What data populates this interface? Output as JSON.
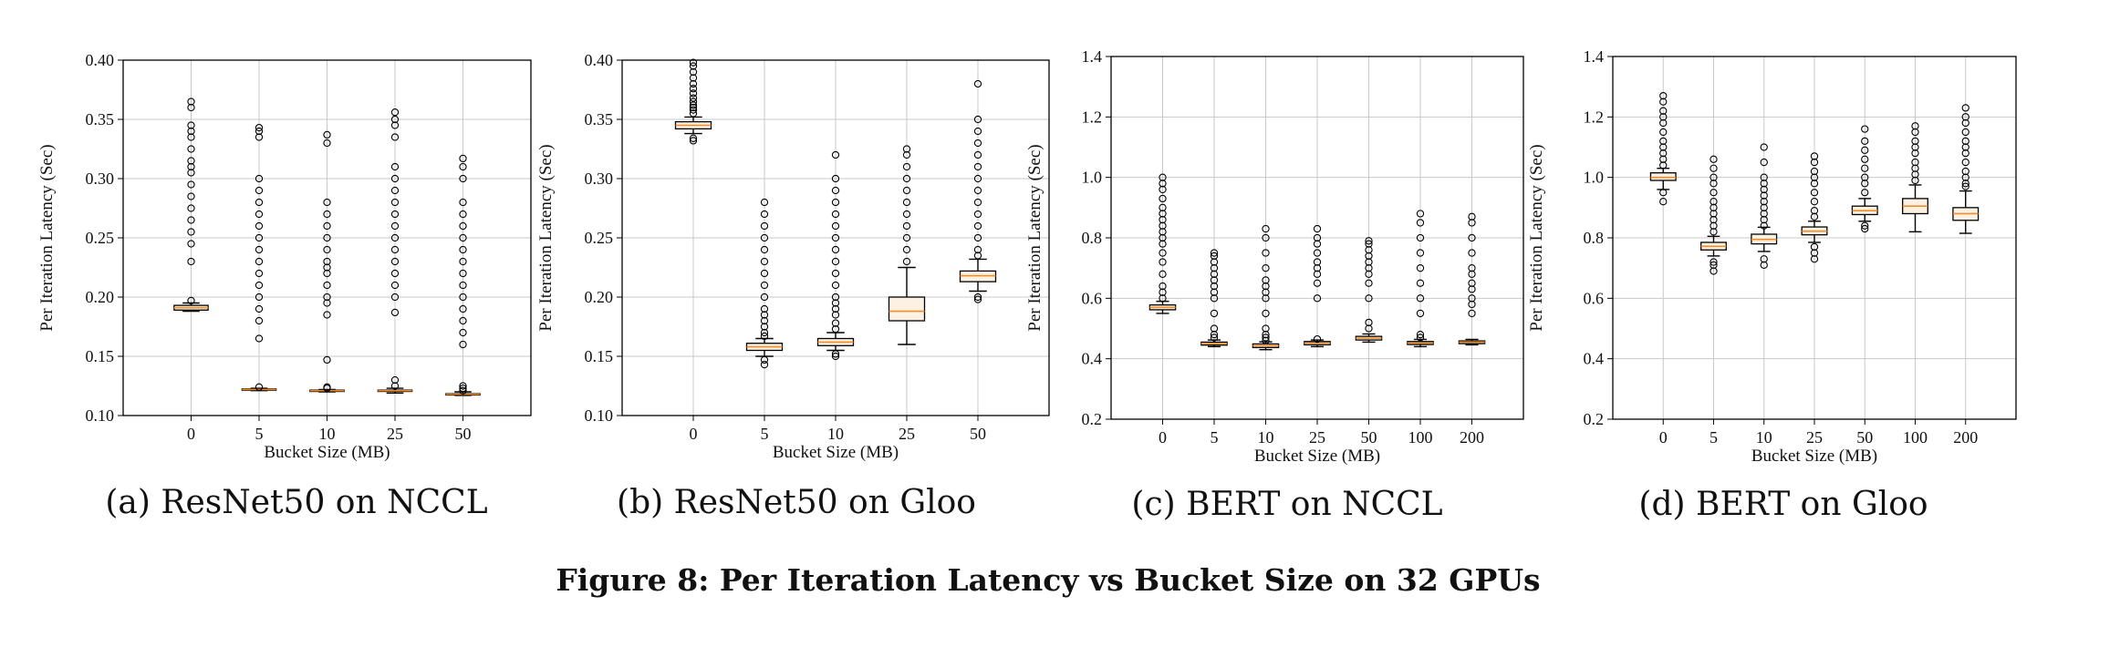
{
  "figure_caption": "Figure 8: Per Iteration Latency vs Bucket Size on 32 GPUs",
  "colors": {
    "box_fill": "#fdf1e3",
    "median": "#f28c28",
    "grid": "#c8c8c8",
    "frame": "#000000"
  },
  "chart_data": [
    {
      "type": "box",
      "caption": "(a) ResNet50 on NCCL",
      "xlabel": "Bucket Size (MB)",
      "ylabel": "Per Iteration Latency (Sec)",
      "ylim": [
        0.1,
        0.4
      ],
      "yticks": [
        "0.10",
        "0.15",
        "0.20",
        "0.25",
        "0.30",
        "0.35",
        "0.40"
      ],
      "grid": true,
      "categories": [
        "0",
        "5",
        "10",
        "25",
        "50"
      ],
      "boxes": [
        {
          "whislo": 0.188,
          "q1": 0.189,
          "med": 0.191,
          "q3": 0.193,
          "whishi": 0.195,
          "fliers": [
            0.197,
            0.23,
            0.245,
            0.255,
            0.265,
            0.275,
            0.285,
            0.295,
            0.305,
            0.31,
            0.315,
            0.325,
            0.335,
            0.34,
            0.345,
            0.36,
            0.365
          ]
        },
        {
          "whislo": 0.121,
          "q1": 0.1215,
          "med": 0.122,
          "q3": 0.1225,
          "whishi": 0.123,
          "fliers": [
            0.124,
            0.165,
            0.18,
            0.19,
            0.2,
            0.21,
            0.22,
            0.23,
            0.24,
            0.25,
            0.26,
            0.27,
            0.28,
            0.29,
            0.3,
            0.335,
            0.34,
            0.343
          ]
        },
        {
          "whislo": 0.12,
          "q1": 0.1205,
          "med": 0.121,
          "q3": 0.1215,
          "whishi": 0.122,
          "fliers": [
            0.123,
            0.124,
            0.147,
            0.185,
            0.195,
            0.2,
            0.21,
            0.22,
            0.225,
            0.23,
            0.24,
            0.25,
            0.26,
            0.27,
            0.28,
            0.33,
            0.337
          ]
        },
        {
          "whislo": 0.119,
          "q1": 0.1205,
          "med": 0.121,
          "q3": 0.1215,
          "whishi": 0.123,
          "fliers": [
            0.125,
            0.13,
            0.187,
            0.2,
            0.21,
            0.22,
            0.23,
            0.24,
            0.25,
            0.26,
            0.27,
            0.28,
            0.29,
            0.3,
            0.31,
            0.335,
            0.345,
            0.35,
            0.356
          ]
        },
        {
          "whislo": 0.117,
          "q1": 0.1175,
          "med": 0.118,
          "q3": 0.1185,
          "whishi": 0.12,
          "fliers": [
            0.121,
            0.123,
            0.125,
            0.16,
            0.17,
            0.18,
            0.19,
            0.2,
            0.21,
            0.22,
            0.23,
            0.24,
            0.25,
            0.26,
            0.27,
            0.28,
            0.3,
            0.31,
            0.317
          ]
        }
      ]
    },
    {
      "type": "box",
      "caption": "(b) ResNet50 on Gloo",
      "xlabel": "Bucket Size (MB)",
      "ylabel": "Per Iteration Latency (Sec)",
      "ylim": [
        0.1,
        0.4
      ],
      "yticks": [
        "0.10",
        "0.15",
        "0.20",
        "0.25",
        "0.30",
        "0.35",
        "0.40"
      ],
      "grid": true,
      "categories": [
        "0",
        "5",
        "10",
        "25",
        "50"
      ],
      "boxes": [
        {
          "whislo": 0.338,
          "q1": 0.342,
          "med": 0.345,
          "q3": 0.348,
          "whishi": 0.352,
          "fliers": [
            0.332,
            0.334,
            0.355,
            0.358,
            0.36,
            0.362,
            0.365,
            0.368,
            0.372,
            0.376,
            0.38,
            0.385,
            0.39,
            0.395,
            0.398
          ]
        },
        {
          "whislo": 0.15,
          "q1": 0.155,
          "med": 0.158,
          "q3": 0.161,
          "whishi": 0.165,
          "fliers": [
            0.143,
            0.147,
            0.167,
            0.17,
            0.175,
            0.18,
            0.185,
            0.19,
            0.2,
            0.21,
            0.22,
            0.23,
            0.24,
            0.25,
            0.26,
            0.27,
            0.28
          ]
        },
        {
          "whislo": 0.155,
          "q1": 0.159,
          "med": 0.162,
          "q3": 0.165,
          "whishi": 0.17,
          "fliers": [
            0.15,
            0.152,
            0.173,
            0.178,
            0.185,
            0.19,
            0.195,
            0.2,
            0.21,
            0.22,
            0.23,
            0.24,
            0.25,
            0.26,
            0.27,
            0.28,
            0.29,
            0.3,
            0.32
          ]
        },
        {
          "whislo": 0.16,
          "q1": 0.18,
          "med": 0.188,
          "q3": 0.2,
          "whishi": 0.225,
          "fliers": [
            0.23,
            0.24,
            0.25,
            0.26,
            0.27,
            0.28,
            0.29,
            0.3,
            0.31,
            0.32,
            0.325
          ]
        },
        {
          "whislo": 0.205,
          "q1": 0.213,
          "med": 0.218,
          "q3": 0.222,
          "whishi": 0.232,
          "fliers": [
            0.198,
            0.2,
            0.235,
            0.24,
            0.25,
            0.26,
            0.27,
            0.28,
            0.29,
            0.3,
            0.31,
            0.32,
            0.33,
            0.34,
            0.35,
            0.38
          ]
        }
      ]
    },
    {
      "type": "box",
      "caption": "(c) BERT on NCCL",
      "xlabel": "Bucket Size (MB)",
      "ylabel": "Per Iteration Latency (Sec)",
      "ylim": [
        0.2,
        1.4
      ],
      "yticks": [
        "0.2",
        "0.4",
        "0.6",
        "0.8",
        "1.0",
        "1.2",
        "1.4"
      ],
      "grid": true,
      "categories": [
        "0",
        "5",
        "10",
        "25",
        "50",
        "100",
        "200"
      ],
      "boxes": [
        {
          "whislo": 0.55,
          "q1": 0.562,
          "med": 0.57,
          "q3": 0.578,
          "whishi": 0.59,
          "fliers": [
            0.6,
            0.62,
            0.64,
            0.68,
            0.72,
            0.75,
            0.78,
            0.8,
            0.82,
            0.84,
            0.86,
            0.88,
            0.9,
            0.93,
            0.96,
            0.98,
            1.0
          ]
        },
        {
          "whislo": 0.44,
          "q1": 0.445,
          "med": 0.45,
          "q3": 0.455,
          "whishi": 0.462,
          "fliers": [
            0.47,
            0.48,
            0.5,
            0.55,
            0.6,
            0.62,
            0.64,
            0.66,
            0.68,
            0.7,
            0.72,
            0.74,
            0.75
          ]
        },
        {
          "whislo": 0.43,
          "q1": 0.437,
          "med": 0.443,
          "q3": 0.449,
          "whishi": 0.456,
          "fliers": [
            0.46,
            0.47,
            0.48,
            0.5,
            0.55,
            0.6,
            0.62,
            0.64,
            0.66,
            0.7,
            0.75,
            0.8,
            0.83
          ]
        },
        {
          "whislo": 0.44,
          "q1": 0.446,
          "med": 0.452,
          "q3": 0.457,
          "whishi": 0.462,
          "fliers": [
            0.465,
            0.6,
            0.65,
            0.68,
            0.7,
            0.72,
            0.75,
            0.78,
            0.8,
            0.83
          ]
        },
        {
          "whislo": 0.455,
          "q1": 0.462,
          "med": 0.468,
          "q3": 0.474,
          "whishi": 0.482,
          "fliers": [
            0.5,
            0.52,
            0.6,
            0.65,
            0.68,
            0.7,
            0.72,
            0.74,
            0.76,
            0.78,
            0.79
          ]
        },
        {
          "whislo": 0.44,
          "q1": 0.447,
          "med": 0.452,
          "q3": 0.457,
          "whishi": 0.464,
          "fliers": [
            0.47,
            0.48,
            0.55,
            0.6,
            0.65,
            0.7,
            0.75,
            0.8,
            0.85,
            0.88
          ]
        },
        {
          "whislo": 0.446,
          "q1": 0.45,
          "med": 0.455,
          "q3": 0.459,
          "whishi": 0.464,
          "fliers": [
            0.55,
            0.58,
            0.6,
            0.63,
            0.65,
            0.68,
            0.7,
            0.75,
            0.8,
            0.85,
            0.87
          ]
        }
      ]
    },
    {
      "type": "box",
      "caption": "(d) BERT on Gloo",
      "xlabel": "Bucket Size (MB)",
      "ylabel": "Per Iteration Latency (Sec)",
      "ylim": [
        0.2,
        1.4
      ],
      "yticks": [
        "0.2",
        "0.4",
        "0.6",
        "0.8",
        "1.0",
        "1.2",
        "1.4"
      ],
      "grid": true,
      "categories": [
        "0",
        "5",
        "10",
        "25",
        "50",
        "100",
        "200"
      ],
      "boxes": [
        {
          "whislo": 0.96,
          "q1": 0.99,
          "med": 1.0,
          "q3": 1.015,
          "whishi": 1.03,
          "fliers": [
            0.92,
            0.95,
            1.04,
            1.06,
            1.08,
            1.1,
            1.12,
            1.15,
            1.18,
            1.2,
            1.22,
            1.25,
            1.27
          ]
        },
        {
          "whislo": 0.74,
          "q1": 0.76,
          "med": 0.772,
          "q3": 0.785,
          "whishi": 0.805,
          "fliers": [
            0.69,
            0.71,
            0.72,
            0.82,
            0.84,
            0.86,
            0.88,
            0.9,
            0.92,
            0.95,
            0.98,
            1.0,
            1.03,
            1.06
          ]
        },
        {
          "whislo": 0.755,
          "q1": 0.78,
          "med": 0.795,
          "q3": 0.812,
          "whishi": 0.835,
          "fliers": [
            0.71,
            0.73,
            0.84,
            0.86,
            0.88,
            0.9,
            0.92,
            0.94,
            0.96,
            0.98,
            1.0,
            1.05,
            1.1
          ]
        },
        {
          "whislo": 0.785,
          "q1": 0.81,
          "med": 0.822,
          "q3": 0.836,
          "whishi": 0.855,
          "fliers": [
            0.73,
            0.75,
            0.77,
            0.87,
            0.89,
            0.92,
            0.95,
            0.98,
            1.0,
            1.02,
            1.05,
            1.07
          ]
        },
        {
          "whislo": 0.855,
          "q1": 0.877,
          "med": 0.89,
          "q3": 0.905,
          "whishi": 0.93,
          "fliers": [
            0.83,
            0.84,
            0.95,
            0.98,
            1.0,
            1.03,
            1.06,
            1.09,
            1.12,
            1.16
          ]
        },
        {
          "whislo": 0.82,
          "q1": 0.88,
          "med": 0.905,
          "q3": 0.93,
          "whishi": 0.975,
          "fliers": [
            0.99,
            1.01,
            1.03,
            1.05,
            1.08,
            1.1,
            1.12,
            1.15,
            1.17
          ]
        },
        {
          "whislo": 0.815,
          "q1": 0.858,
          "med": 0.88,
          "q3": 0.9,
          "whishi": 0.955,
          "fliers": [
            0.97,
            0.98,
            1.0,
            1.02,
            1.05,
            1.08,
            1.1,
            1.12,
            1.15,
            1.18,
            1.2,
            1.23
          ]
        }
      ]
    }
  ]
}
